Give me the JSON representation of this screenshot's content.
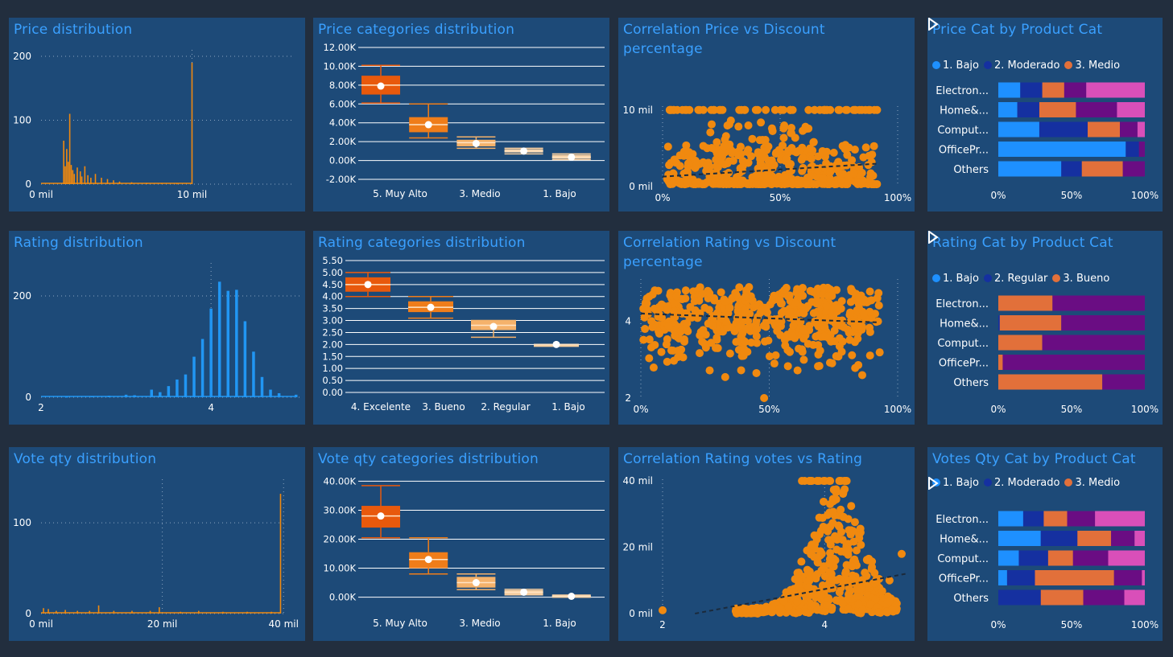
{
  "colors": {
    "background": "#222e3e",
    "panel": "#1d4a78",
    "title": "#3aa0ff",
    "orange": "#f0890f",
    "blue": "#2196f3",
    "dark_orange": "#e8590c",
    "mid_orange": "#ef7d1a",
    "light_orange": "#f5b26b",
    "pale_orange": "#f9cfa0",
    "seg_blue": "#1e90ff",
    "seg_navy": "#1530a0",
    "seg_orange": "#e2703a",
    "seg_purple": "#6a0d83",
    "seg_pink": "#d94fb9"
  },
  "titles": {
    "p1": "Price distribution",
    "p2": "Price categories distribution",
    "p3": "Correlation Price vs Discount percentage",
    "p4": "Price Cat by Product Cat",
    "p5": "Rating distribution",
    "p6": "Rating categories distribution",
    "p7": "Correlation Rating vs Discount percentage",
    "p8": "Rating Cat by Product Cat",
    "p9": "Vote qty distribution",
    "p10": "Vote qty categories distribution",
    "p11": "Correlation Rating votes vs Rating",
    "p12": "Votes Qty Cat by Product Cat"
  },
  "legends": {
    "p4": [
      {
        "label": "1. Bajo",
        "color": "#1e90ff"
      },
      {
        "label": "2. Moderado",
        "color": "#1530a0"
      },
      {
        "label": "3. Medio",
        "color": "#e2703a"
      }
    ],
    "p8": [
      {
        "label": "1. Bajo",
        "color": "#1e90ff"
      },
      {
        "label": "2. Regular",
        "color": "#1530a0"
      },
      {
        "label": "3. Bueno",
        "color": "#e2703a"
      }
    ],
    "p12": [
      {
        "label": "1. Bajo",
        "color": "#1e90ff"
      },
      {
        "label": "2. Moderado",
        "color": "#1530a0"
      },
      {
        "label": "3. Medio",
        "color": "#e2703a"
      }
    ]
  },
  "icons": {
    "legend_next": "play-triangle-icon"
  },
  "chart_data": [
    {
      "id": "price_hist",
      "type": "bar",
      "x_ticks": [
        {
          "v": 0,
          "label": "0 mil"
        },
        {
          "v": 10000,
          "label": "10 mil"
        }
      ],
      "y_ticks": [
        {
          "v": 0,
          "label": "0"
        },
        {
          "v": 100,
          "label": "100"
        },
        {
          "v": 200,
          "label": "200"
        }
      ],
      "xlim": [
        0,
        16800
      ],
      "ylim": [
        0,
        210
      ],
      "bars": [
        [
          1500,
          68
        ],
        [
          1600,
          28
        ],
        [
          1700,
          55
        ],
        [
          1800,
          35
        ],
        [
          1900,
          110
        ],
        [
          2000,
          30
        ],
        [
          2100,
          22
        ],
        [
          2200,
          16
        ],
        [
          2400,
          26
        ],
        [
          2600,
          20
        ],
        [
          2700,
          12
        ],
        [
          2900,
          28
        ],
        [
          3100,
          14
        ],
        [
          3300,
          10
        ],
        [
          3600,
          16
        ],
        [
          4000,
          10
        ],
        [
          4400,
          8
        ],
        [
          4800,
          6
        ],
        [
          5200,
          4
        ],
        [
          6000,
          3
        ],
        [
          7000,
          2
        ],
        [
          8000,
          2
        ],
        [
          9000,
          1
        ],
        [
          10000,
          190
        ]
      ],
      "grid": true
    },
    {
      "id": "price_box",
      "type": "box",
      "categories": [
        "5. Muy Alto",
        "3. Medio",
        "1. Bajo"
      ],
      "y_ticks": [
        "12.00K",
        "10.00K",
        "8.00K",
        "6.00K",
        "4.00K",
        "2.00K",
        "0.00K",
        "-2.00K"
      ],
      "ylim": [
        -2000,
        12000
      ],
      "boxes": [
        {
          "min": 6100,
          "q1": 7000,
          "median": 8000,
          "q3": 9000,
          "max": 10100,
          "mean": 7900,
          "color": "#e8590c"
        },
        {
          "min": 2400,
          "q1": 3000,
          "median": 3800,
          "q3": 4600,
          "max": 6000,
          "mean": 3800,
          "color": "#ef7d1a"
        },
        {
          "min": 1300,
          "q1": 1500,
          "median": 1900,
          "q3": 2200,
          "max": 2500,
          "mean": 1800,
          "color": "#f5b26b"
        },
        {
          "min": 700,
          "q1": 850,
          "median": 1000,
          "q3": 1200,
          "max": 1300,
          "mean": 1000,
          "color": "#f9cfa0"
        },
        {
          "min": 100,
          "q1": 200,
          "median": 350,
          "q3": 600,
          "max": 700,
          "mean": 350,
          "color": "#f9cfa0"
        }
      ]
    },
    {
      "id": "price_scatter",
      "type": "scatter",
      "x_ticks": [
        {
          "v": 0,
          "label": "0%"
        },
        {
          "v": 50,
          "label": "50%"
        },
        {
          "v": 100,
          "label": "100%"
        }
      ],
      "y_ticks": [
        {
          "v": 0,
          "label": "0 mil"
        },
        {
          "v": 10000,
          "label": "10 mil"
        }
      ],
      "xlim": [
        0,
        100
      ],
      "ylim": [
        0,
        10500
      ],
      "trend": [
        [
          0,
          1300
        ],
        [
          92,
          3000
        ]
      ]
    },
    {
      "id": "price_by_cat",
      "type": "bar",
      "categories": [
        "Electron...",
        "Home&...",
        "Comput...",
        "OfficePr...",
        "Others"
      ],
      "x_ticks": [
        "0%",
        "50%",
        "100%"
      ],
      "segments": [
        [
          15,
          15,
          15,
          15,
          40
        ],
        [
          13,
          15,
          25,
          28,
          19
        ],
        [
          28,
          33,
          22,
          12,
          5
        ],
        [
          87,
          9,
          0,
          4,
          0
        ],
        [
          43,
          14,
          28,
          15,
          0
        ]
      ]
    },
    {
      "id": "rating_hist",
      "type": "bar",
      "x_ticks": [
        {
          "v": 2,
          "label": "2"
        },
        {
          "v": 4,
          "label": "4"
        }
      ],
      "y_ticks": [
        {
          "v": 0,
          "label": "0"
        },
        {
          "v": 200,
          "label": "200"
        }
      ],
      "xlim": [
        2,
        5.05
      ],
      "ylim": [
        0,
        265
      ],
      "bars": [
        [
          2.3,
          1
        ],
        [
          2.6,
          2
        ],
        [
          2.8,
          3
        ],
        [
          3.0,
          5
        ],
        [
          3.1,
          4
        ],
        [
          3.3,
          15
        ],
        [
          3.4,
          10
        ],
        [
          3.5,
          22
        ],
        [
          3.6,
          35
        ],
        [
          3.7,
          45
        ],
        [
          3.8,
          80
        ],
        [
          3.9,
          115
        ],
        [
          4.0,
          175
        ],
        [
          4.1,
          228
        ],
        [
          4.2,
          210
        ],
        [
          4.3,
          212
        ],
        [
          4.4,
          150
        ],
        [
          4.5,
          90
        ],
        [
          4.6,
          40
        ],
        [
          4.7,
          15
        ],
        [
          4.8,
          8
        ],
        [
          5.0,
          5
        ]
      ],
      "grid": true
    },
    {
      "id": "rating_box",
      "type": "box",
      "categories": [
        "4. Excelente",
        "3. Bueno",
        "2. Regular",
        "1. Bajo"
      ],
      "y_ticks": [
        "5.50",
        "5.00",
        "4.50",
        "4.00",
        "3.50",
        "3.00",
        "2.50",
        "2.00",
        "1.50",
        "1.00",
        "0.50",
        "0.00"
      ],
      "ylim": [
        0,
        5.5
      ],
      "boxes": [
        {
          "min": 4.0,
          "q1": 4.2,
          "median": 4.5,
          "q3": 4.8,
          "max": 5.0,
          "mean": 4.5,
          "color": "#e8590c"
        },
        {
          "min": 3.1,
          "q1": 3.35,
          "median": 3.55,
          "q3": 3.8,
          "max": 4.0,
          "mean": 3.55,
          "color": "#ef7d1a"
        },
        {
          "min": 2.3,
          "q1": 2.6,
          "median": 2.8,
          "q3": 3.0,
          "max": 3.0,
          "mean": 2.75,
          "color": "#f5b26b"
        },
        {
          "min": 2.0,
          "q1": 2.0,
          "median": 2.0,
          "q3": 2.0,
          "max": 2.0,
          "mean": 2.0,
          "color": "#f9cfa0"
        }
      ]
    },
    {
      "id": "rating_scatter",
      "type": "scatter",
      "x_ticks": [
        {
          "v": 0,
          "label": "0%"
        },
        {
          "v": 50,
          "label": "50%"
        },
        {
          "v": 100,
          "label": "100%"
        }
      ],
      "y_ticks": [
        {
          "v": 2,
          "label": "2"
        },
        {
          "v": 4,
          "label": "4"
        }
      ],
      "xlim": [
        0,
        100
      ],
      "ylim": [
        2,
        5.1
      ],
      "trend": [
        [
          0,
          4.2
        ],
        [
          93,
          3.97
        ]
      ]
    },
    {
      "id": "rating_by_cat",
      "type": "bar",
      "categories": [
        "Electron...",
        "Home&...",
        "Comput...",
        "OfficePr...",
        "Others"
      ],
      "x_ticks": [
        "0%",
        "50%",
        "100%"
      ],
      "segments": [
        [
          0,
          0,
          37,
          63,
          0
        ],
        [
          0,
          1,
          42,
          57,
          0
        ],
        [
          0,
          0,
          30,
          70,
          0
        ],
        [
          0,
          0,
          3,
          97,
          0
        ],
        [
          0,
          0,
          71,
          29,
          0
        ]
      ]
    },
    {
      "id": "votes_hist",
      "type": "bar",
      "x_ticks": [
        {
          "v": 0,
          "label": "0 mil"
        },
        {
          "v": 20000,
          "label": "20 mil"
        },
        {
          "v": 40000,
          "label": "40 mil"
        }
      ],
      "y_ticks": [
        {
          "v": 0,
          "label": "0"
        },
        {
          "v": 100,
          "label": "100"
        }
      ],
      "xlim": [
        0,
        40500
      ],
      "ylim": [
        0,
        148
      ],
      "bars": [
        [
          400,
          6
        ],
        [
          1200,
          5
        ],
        [
          2500,
          3
        ],
        [
          4000,
          4
        ],
        [
          6000,
          3
        ],
        [
          8000,
          3
        ],
        [
          9500,
          9
        ],
        [
          12000,
          3
        ],
        [
          15000,
          3
        ],
        [
          18000,
          3
        ],
        [
          19500,
          7
        ],
        [
          23000,
          2
        ],
        [
          26000,
          3
        ],
        [
          30000,
          2
        ],
        [
          34000,
          2
        ],
        [
          38000,
          2
        ],
        [
          39500,
          132
        ]
      ],
      "grid": true
    },
    {
      "id": "votes_box",
      "type": "box",
      "categories": [
        "5. Muy Alto",
        "3. Medio",
        "1. Bajo"
      ],
      "y_ticks": [
        "40.00K",
        "30.00K",
        "20.00K",
        "10.00K",
        "0.00K"
      ],
      "ylim": [
        -4000,
        41500
      ],
      "boxes": [
        {
          "min": 20500,
          "q1": 24000,
          "median": 28000,
          "q3": 31500,
          "max": 38500,
          "mean": 28000,
          "color": "#e8590c"
        },
        {
          "min": 8000,
          "q1": 10000,
          "median": 13000,
          "q3": 15500,
          "max": 20500,
          "mean": 13000,
          "color": "#ef7d1a"
        },
        {
          "min": 2600,
          "q1": 3300,
          "median": 5000,
          "q3": 7000,
          "max": 8000,
          "mean": 5000,
          "color": "#f5b26b"
        },
        {
          "min": 800,
          "q1": 1000,
          "median": 1700,
          "q3": 2400,
          "max": 2700,
          "mean": 1700,
          "color": "#f9cfa0"
        },
        {
          "min": 100,
          "q1": 200,
          "median": 300,
          "q3": 600,
          "max": 700,
          "mean": 300,
          "color": "#f9cfa0"
        }
      ]
    },
    {
      "id": "votes_scatter",
      "type": "scatter",
      "x_ticks": [
        {
          "v": 2,
          "label": "2"
        },
        {
          "v": 4,
          "label": "4"
        }
      ],
      "y_ticks": [
        {
          "v": 0,
          "label": "0 mil"
        },
        {
          "v": 20000,
          "label": "20 mil"
        },
        {
          "v": 40000,
          "label": "40 mil"
        }
      ],
      "xlim": [
        2,
        5.0
      ],
      "ylim": [
        0,
        40500
      ],
      "trend": [
        [
          2.4,
          0
        ],
        [
          5.0,
          12000
        ]
      ]
    },
    {
      "id": "votes_by_cat",
      "type": "bar",
      "categories": [
        "Electron...",
        "Home&...",
        "Comput...",
        "OfficePr...",
        "Others"
      ],
      "x_ticks": [
        "0%",
        "50%",
        "100%"
      ],
      "segments": [
        [
          17,
          14,
          16,
          19,
          34
        ],
        [
          29,
          25,
          23,
          16,
          7
        ],
        [
          14,
          20,
          17,
          24,
          25
        ],
        [
          6,
          19,
          54,
          19,
          2
        ],
        [
          0,
          29,
          29,
          28,
          14
        ]
      ]
    }
  ]
}
